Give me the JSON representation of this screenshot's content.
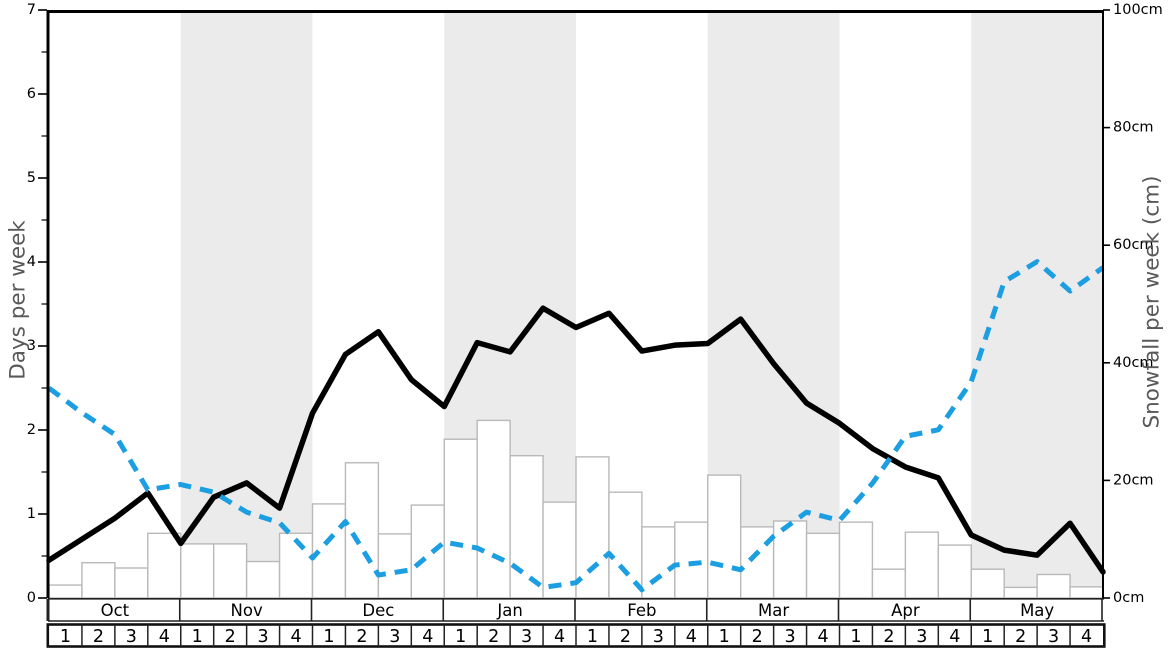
{
  "figure": {
    "left_axis_title": "Days per week",
    "right_axis_title": "Snowfall per week (cm)"
  },
  "chart_data": {
    "type": "composite",
    "months": [
      "Oct",
      "Nov",
      "Dec",
      "Jan",
      "Feb",
      "Mar",
      "Apr",
      "May"
    ],
    "weeks_per_month": [
      "1",
      "2",
      "3",
      "4"
    ],
    "shaded_months": [
      "Nov",
      "Jan",
      "Mar",
      "May"
    ],
    "band_color": "#ebebeb",
    "left_axis": {
      "label": "Days per week",
      "min": 0,
      "max": 7,
      "major_step": 1,
      "minor_step": 0.5,
      "tick_labels": [
        "0",
        "1",
        "2",
        "3",
        "4",
        "5",
        "6",
        "7"
      ]
    },
    "right_axis": {
      "label": "Snowfall per week (cm)",
      "min": 0,
      "max": 100,
      "major_step": 20,
      "tick_labels": [
        "0cm",
        "20cm",
        "40cm",
        "60cm",
        "80cm",
        "100cm"
      ]
    },
    "series": [
      {
        "name": "snowfall-per-week-bars",
        "type": "bar",
        "axis": "right",
        "unit": "cm",
        "fill": "#ffffff",
        "stroke": "#b9b9b9",
        "values": [
          2.2,
          6,
          5.1,
          11,
          9.2,
          9.2,
          6.2,
          11,
          16,
          23,
          10.9,
          15.8,
          27,
          30.2,
          24.2,
          16.3,
          24,
          18,
          12.1,
          12.9,
          20.9,
          12.1,
          13.1,
          11,
          12.9,
          4.9,
          11.2,
          9,
          4.9,
          1.8,
          4,
          1.9
        ]
      },
      {
        "name": "days-per-week-line",
        "type": "line",
        "style": "solid",
        "axis": "left",
        "unit": "days",
        "color": "#000000",
        "values": [
          0.45,
          0.7,
          0.95,
          1.25,
          0.65,
          1.2,
          1.37,
          1.07,
          2.2,
          2.9,
          3.17,
          2.6,
          2.28,
          3.04,
          2.93,
          3.45,
          3.22,
          3.39,
          2.94,
          3.01,
          3.03,
          3.32,
          2.79,
          2.32,
          2.08,
          1.78,
          1.56,
          1.43,
          0.75,
          0.57,
          0.51,
          0.89,
          0.31
        ]
      },
      {
        "name": "dashed-blue-line",
        "type": "line",
        "style": "dashed",
        "axis": "right",
        "unit": "cm",
        "color": "#1b9ee2",
        "values": [
          35.7,
          31.5,
          27.8,
          18.4,
          19.3,
          18,
          14.6,
          12.8,
          6.8,
          13,
          3.9,
          4.8,
          9.5,
          8.5,
          5.9,
          1.8,
          2.6,
          7.6,
          1.4,
          5.6,
          6.1,
          4.8,
          10.5,
          14.6,
          13.2,
          19.5,
          27.5,
          28.6,
          36.8,
          53.8,
          57.2,
          52.2,
          56.2
        ]
      }
    ]
  }
}
